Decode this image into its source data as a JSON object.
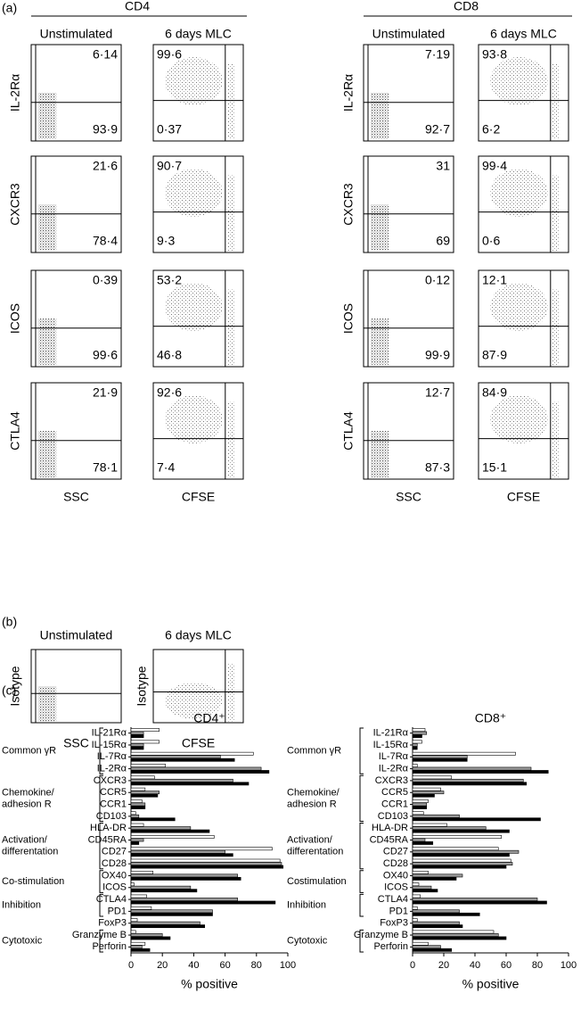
{
  "panel_a": {
    "label": "(a)",
    "groups": [
      {
        "title": "CD4",
        "conditions": [
          "Unstimulated",
          "6 days MLC"
        ],
        "x_labels": [
          "SSC",
          "CFSE"
        ],
        "rows": [
          {
            "marker": "IL-2Rα",
            "plots": [
              [
                "6·14",
                "93·9"
              ],
              [
                "99·6",
                "0·37"
              ]
            ]
          },
          {
            "marker": "CXCR3",
            "plots": [
              [
                "21·6",
                "78·4"
              ],
              [
                "90·7",
                "9·3"
              ]
            ]
          },
          {
            "marker": "ICOS",
            "plots": [
              [
                "0·39",
                "99·6"
              ],
              [
                "53·2",
                "46·8"
              ]
            ]
          },
          {
            "marker": "CTLA4",
            "plots": [
              [
                "21·9",
                "78·1"
              ],
              [
                "92·6",
                "7·4"
              ]
            ]
          }
        ]
      },
      {
        "title": "CD8",
        "conditions": [
          "Unstimulated",
          "6 days MLC"
        ],
        "x_labels": [
          "SSC",
          "CFSE"
        ],
        "rows": [
          {
            "marker": "IL-2Rα",
            "plots": [
              [
                "7·19",
                "92·7"
              ],
              [
                "93·8",
                "6·2"
              ]
            ]
          },
          {
            "marker": "CXCR3",
            "plots": [
              [
                "31",
                "69"
              ],
              [
                "99·4",
                "0·6"
              ]
            ]
          },
          {
            "marker": "ICOS",
            "plots": [
              [
                "0·12",
                "99·9"
              ],
              [
                "12·1",
                "87·9"
              ]
            ]
          },
          {
            "marker": "CTLA4",
            "plots": [
              [
                "12·7",
                "87·3"
              ],
              [
                "84·9",
                "15·1"
              ]
            ]
          }
        ]
      }
    ]
  },
  "panel_b": {
    "label": "(b)",
    "conditions": [
      "Unstimulated",
      "6 days MLC"
    ],
    "y_label": "Isotype",
    "x_labels": [
      "SSC",
      "CFSE"
    ]
  },
  "panel_c": {
    "label": "(c)"
  },
  "chart_data": [
    {
      "type": "bar",
      "orientation": "horizontal",
      "title": "CD4⁺",
      "categories": [
        "IL-21Rα",
        "IL-15Rα",
        "IL-7Rα",
        "IL-2Rα",
        "CXCR3",
        "CCR5",
        "CCR1",
        "CD103",
        "HLA-DR",
        "CD45RA",
        "CD27",
        "CD28",
        "OX40",
        "ICOS",
        "CTLA4",
        "PD1",
        "FoxP3",
        "Granzyme B",
        "Perforin"
      ],
      "groups": [
        [
          "Common γR"
        ],
        [
          "Common γR"
        ],
        [
          "Common γR"
        ],
        [
          "Common γR"
        ],
        [
          "Chemokine/",
          "adhesion R"
        ],
        [
          "Chemokine/",
          "adhesion R"
        ],
        [
          "Chemokine/",
          "adhesion R"
        ],
        [
          "Chemokine/",
          "adhesion R"
        ],
        [
          "Activation/",
          "differentation"
        ],
        [
          "Activation/",
          "differentation"
        ],
        [
          "Activation/",
          "differentation"
        ],
        [
          "Activation/",
          "differentation"
        ],
        [
          "Co-stimulation"
        ],
        [
          "Co-stimulation"
        ],
        [
          "Inhibition"
        ],
        [
          "Inhibition"
        ],
        null,
        [
          "Cytotoxic"
        ],
        [
          "Cytotoxic"
        ]
      ],
      "series": [
        {
          "color": "#ffffff",
          "values": [
            18,
            18,
            78,
            22,
            15,
            9,
            7,
            3,
            8,
            53,
            90,
            95,
            14,
            2,
            10,
            13,
            4,
            3,
            9
          ]
        },
        {
          "color": "#999999",
          "values": [
            8,
            8,
            57,
            83,
            65,
            18,
            9,
            5,
            38,
            8,
            60,
            96,
            68,
            38,
            68,
            52,
            44,
            20,
            7
          ]
        },
        {
          "color": "#000000",
          "values": [
            8,
            8,
            66,
            88,
            75,
            17,
            9,
            28,
            50,
            5,
            65,
            97,
            70,
            42,
            92,
            52,
            47,
            25,
            12
          ]
        }
      ],
      "xlim": [
        0,
        100
      ],
      "xticks": [
        0,
        20,
        40,
        60,
        80,
        100
      ],
      "xlabel": "% positive"
    },
    {
      "type": "bar",
      "orientation": "horizontal",
      "title": "CD8⁺",
      "categories": [
        "IL-21Rα",
        "IL-15Rα",
        "IL-7Rα",
        "IL-2Rα",
        "CXCR3",
        "CCR5",
        "CCR1",
        "CD103",
        "HLA-DR",
        "CD45RA",
        "CD27",
        "CD28",
        "OX40",
        "ICOS",
        "CTLA4",
        "PD1",
        "FoxP3",
        "Granzyme B",
        "Perforin"
      ],
      "groups": [
        [
          "Common γR"
        ],
        [
          "Common γR"
        ],
        [
          "Common γR"
        ],
        [
          "Common γR"
        ],
        [
          "Chemokine/",
          "adhesion R"
        ],
        [
          "Chemokine/",
          "adhesion R"
        ],
        [
          "Chemokine/",
          "adhesion R"
        ],
        [
          "Chemokine/",
          "adhesion R"
        ],
        [
          "Activation/",
          "differentation"
        ],
        [
          "Activation/",
          "differentation"
        ],
        [
          "Activation/",
          "differentation"
        ],
        [
          "Activation/",
          "differentation"
        ],
        [
          "Costimulation"
        ],
        [
          "Costimulation"
        ],
        [
          "Inhibition"
        ],
        [
          "Inhibition"
        ],
        null,
        [
          "Cytotoxic"
        ],
        [
          "Cytotoxic"
        ]
      ],
      "series": [
        {
          "color": "#ffffff",
          "values": [
            8,
            6,
            66,
            3,
            25,
            18,
            10,
            7,
            22,
            57,
            55,
            63,
            10,
            4,
            5,
            3,
            3,
            52,
            10
          ]
        },
        {
          "color": "#999999",
          "values": [
            9,
            3,
            35,
            76,
            71,
            20,
            9,
            30,
            47,
            8,
            68,
            64,
            32,
            12,
            80,
            30,
            30,
            55,
            18
          ]
        },
        {
          "color": "#000000",
          "values": [
            6,
            3,
            35,
            87,
            73,
            14,
            9,
            82,
            62,
            13,
            62,
            60,
            28,
            16,
            86,
            43,
            32,
            60,
            25
          ]
        }
      ],
      "xlim": [
        0,
        100
      ],
      "xticks": [
        0,
        20,
        40,
        60,
        80,
        100
      ],
      "xlabel": "% positive"
    }
  ]
}
